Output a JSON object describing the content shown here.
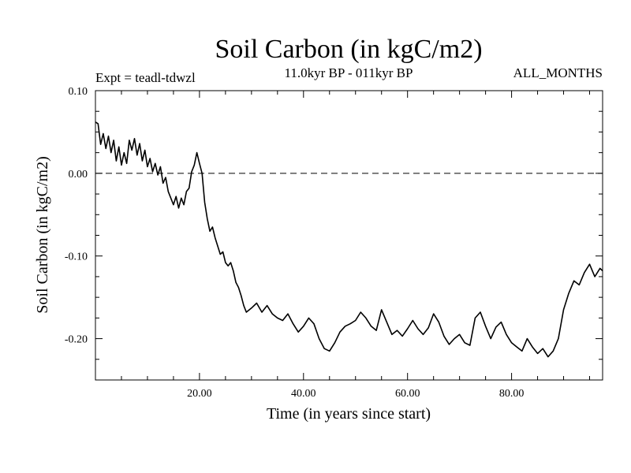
{
  "chart_data": {
    "type": "line",
    "title": "Soil Carbon (in kgC/m2)",
    "subtitle": "11.0kyr BP - 011kyr BP",
    "experiment": "Expt = teadl-tdwzl",
    "period": "ALL_MONTHS",
    "xlabel": "Time (in years since start)",
    "ylabel": "Soil Carbon (in kgC/m2)",
    "xlim": [
      0,
      97.5
    ],
    "ylim": [
      -0.25,
      0.1
    ],
    "x_ticks": [
      {
        "value": 20,
        "label": "20.00"
      },
      {
        "value": 40,
        "label": "40.00"
      },
      {
        "value": 60,
        "label": "60.00"
      },
      {
        "value": 80,
        "label": "80.00"
      }
    ],
    "y_ticks": [
      {
        "value": 0.1,
        "label": "0.10"
      },
      {
        "value": 0.0,
        "label": "0.00"
      },
      {
        "value": -0.1,
        "label": "-0.10"
      },
      {
        "value": -0.2,
        "label": "-0.20"
      }
    ],
    "reference_line": {
      "y": 0.0,
      "style": "dashed"
    },
    "series": [
      {
        "name": "Soil Carbon",
        "x": [
          0,
          0.5,
          1,
          1.5,
          2,
          2.5,
          3,
          3.5,
          4,
          4.5,
          5,
          5.5,
          6,
          6.5,
          7,
          7.5,
          8,
          8.5,
          9,
          9.5,
          10,
          10.5,
          11,
          11.5,
          12,
          12.5,
          13,
          13.5,
          14,
          14.5,
          15,
          15.5,
          16,
          16.5,
          17,
          17.5,
          18,
          18.5,
          19,
          19.5,
          20,
          20.5,
          21,
          21.5,
          22,
          22.5,
          23,
          23.5,
          24,
          24.5,
          25,
          25.5,
          26,
          26.5,
          27,
          27.5,
          28,
          28.5,
          29,
          30,
          31,
          32,
          33,
          34,
          35,
          36,
          37,
          38,
          39,
          40,
          41,
          42,
          43,
          44,
          45,
          46,
          47,
          48,
          49,
          50,
          51,
          52,
          53,
          54,
          55,
          56,
          57,
          58,
          59,
          60,
          61,
          62,
          63,
          64,
          65,
          66,
          67,
          68,
          69,
          70,
          71,
          72,
          73,
          74,
          75,
          76,
          77,
          78,
          79,
          80,
          81,
          82,
          83,
          84,
          85,
          86,
          87,
          88,
          89,
          90,
          91,
          92,
          93,
          94,
          95,
          96,
          97,
          97.5
        ],
        "values": [
          0.062,
          0.06,
          0.035,
          0.048,
          0.03,
          0.045,
          0.025,
          0.04,
          0.015,
          0.032,
          0.01,
          0.025,
          0.012,
          0.04,
          0.028,
          0.042,
          0.022,
          0.036,
          0.015,
          0.028,
          0.008,
          0.018,
          0.002,
          0.012,
          -0.002,
          0.008,
          -0.012,
          -0.005,
          -0.022,
          -0.03,
          -0.038,
          -0.028,
          -0.042,
          -0.03,
          -0.038,
          -0.022,
          -0.018,
          0.002,
          0.01,
          0.025,
          0.012,
          0.0,
          -0.035,
          -0.055,
          -0.07,
          -0.065,
          -0.078,
          -0.088,
          -0.098,
          -0.095,
          -0.108,
          -0.112,
          -0.108,
          -0.118,
          -0.132,
          -0.138,
          -0.148,
          -0.16,
          -0.168,
          -0.163,
          -0.157,
          -0.168,
          -0.16,
          -0.17,
          -0.175,
          -0.178,
          -0.17,
          -0.182,
          -0.192,
          -0.185,
          -0.175,
          -0.182,
          -0.2,
          -0.212,
          -0.215,
          -0.205,
          -0.192,
          -0.185,
          -0.182,
          -0.178,
          -0.168,
          -0.175,
          -0.185,
          -0.19,
          -0.165,
          -0.18,
          -0.195,
          -0.19,
          -0.197,
          -0.188,
          -0.178,
          -0.188,
          -0.195,
          -0.187,
          -0.17,
          -0.18,
          -0.197,
          -0.207,
          -0.2,
          -0.195,
          -0.205,
          -0.208,
          -0.175,
          -0.168,
          -0.185,
          -0.2,
          -0.186,
          -0.18,
          -0.195,
          -0.205,
          -0.21,
          -0.215,
          -0.2,
          -0.21,
          -0.218,
          -0.212,
          -0.222,
          -0.215,
          -0.2,
          -0.165,
          -0.145,
          -0.13,
          -0.135,
          -0.12,
          -0.11,
          -0.125,
          -0.115,
          -0.118
        ]
      }
    ]
  }
}
